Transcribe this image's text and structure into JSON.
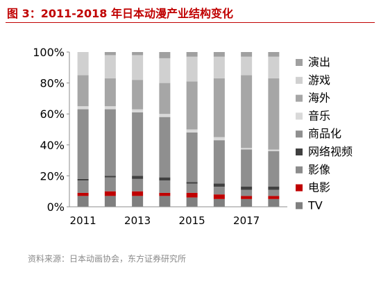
{
  "figure_title": "图 3：2011-2018 年日本动漫产业结构变化",
  "source_note": "资料来源：日本动画协会，东方证券研究所",
  "chart_data": {
    "type": "bar",
    "stacked": true,
    "title": "",
    "xlabel": "",
    "ylabel": "",
    "ylim": [
      0,
      100
    ],
    "y_ticks": [
      "0%",
      "20%",
      "40%",
      "60%",
      "80%",
      "100%"
    ],
    "y_tick_values": [
      0,
      20,
      40,
      60,
      80,
      100
    ],
    "categories": [
      "2011",
      "2012",
      "2013",
      "2014",
      "2015",
      "2016",
      "2017",
      "2018"
    ],
    "x_tick_labels": [
      "2011",
      "",
      "2013",
      "",
      "2015",
      "",
      "2017",
      ""
    ],
    "legend_position": "right",
    "grid": false,
    "series": [
      {
        "name": "TV",
        "color": "#7f7f7f",
        "values": [
          7,
          7,
          7,
          7,
          6,
          5,
          5,
          5
        ]
      },
      {
        "name": "电影",
        "color": "#c00000",
        "values": [
          2,
          3,
          3,
          2,
          3,
          3,
          2,
          2
        ]
      },
      {
        "name": "影像",
        "color": "#8c8c8c",
        "values": [
          8,
          9,
          8,
          8,
          6,
          5,
          4,
          4
        ]
      },
      {
        "name": "网络视频",
        "color": "#404040",
        "values": [
          1,
          1,
          2,
          2,
          1,
          2,
          2,
          2
        ]
      },
      {
        "name": "商品化",
        "color": "#8f8f8f",
        "values": [
          45,
          43,
          41,
          39,
          32,
          28,
          24,
          23
        ]
      },
      {
        "name": "音乐",
        "color": "#d9d9d9",
        "values": [
          2,
          2,
          2,
          2,
          2,
          2,
          1,
          1
        ]
      },
      {
        "name": "海外",
        "color": "#a6a6a6",
        "values": [
          20,
          18,
          19,
          20,
          31,
          38,
          47,
          46
        ]
      },
      {
        "name": "游戏",
        "color": "#d0d0d0",
        "values": [
          15,
          15,
          16,
          16,
          16,
          14,
          12,
          14
        ]
      },
      {
        "name": "演出",
        "color": "#a0a0a0",
        "values": [
          0,
          2,
          2,
          4,
          3,
          3,
          3,
          3
        ]
      }
    ]
  }
}
